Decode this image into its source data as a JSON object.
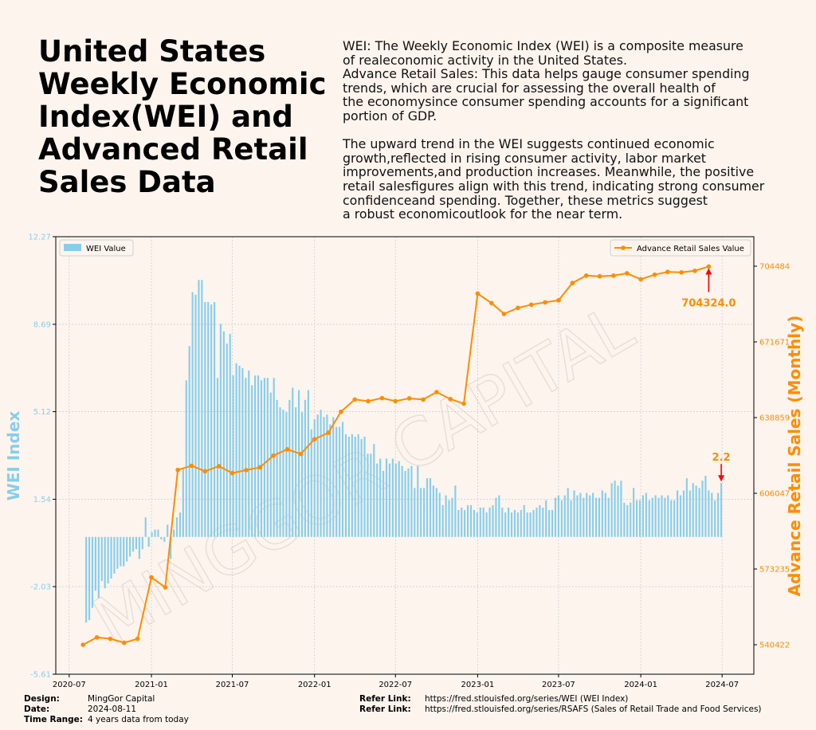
{
  "title": "United States Weekly Economic Index(WEI) and Advanced Retail Sales Data",
  "description": [
    "WEI: The Weekly Economic Index (WEI) is a composite measure\nof realeconomic activity in the United States.\nAdvance Retail Sales: This data helps gauge consumer spending\ntrends, which are crucial for assessing the overall health of\nthe economysince consumer spending accounts for a significant\nportion of GDP.",
    "The upward trend in the WEI suggests continued economic\ngrowth,reflected in rising consumer activity, labor market\nimprovements,and production increases. Meanwhile, the positive\nretail salesfigures align with this trend, indicating strong consumer\nconfidenceand spending. Together, these metrics suggest\na robust economicoutlook for the near term."
  ],
  "footer": {
    "design_label": "Design:",
    "design": "MingGor Capital",
    "date_label": "Date:",
    "date": "2024-08-11",
    "range_label": "Time Range:",
    "range": "4 years data from today",
    "ref1_label": "Refer Link:",
    "ref1": "https://fred.stlouisfed.org/series/WEI (WEI Index)",
    "ref2_label": "Refer Link:",
    "ref2": "https://fred.stlouisfed.org/series/RSAFS (Sales of Retail Trade and Food Services)"
  },
  "colors": {
    "bar": "#87ceeb",
    "line": "#ff8c00",
    "arrow": "#ff0000",
    "background": "#fdf4ee",
    "watermark": "#e6dcd4"
  },
  "chart_data": {
    "type": "bar+line",
    "watermark": "MINGGOR CAPITAL",
    "x_ticks": [
      "2020-07",
      "2021-01",
      "2021-07",
      "2022-01",
      "2022-07",
      "2023-01",
      "2023-07",
      "2024-01",
      "2024-07"
    ],
    "x_range": [
      "2020-06-01",
      "2024-09-10"
    ],
    "left_axis": {
      "label": "WEI Index",
      "ticks": [
        "12.27",
        "8.69",
        "5.12",
        "1.54",
        "-2.03",
        "-5.61"
      ],
      "range": [
        -5.61,
        12.27
      ]
    },
    "right_axis": {
      "label": "Advance Retail Sales (Monthly)",
      "ticks": [
        "704484",
        "671671",
        "638859",
        "606047",
        "573235",
        "540422"
      ]
    },
    "bar_series": {
      "name": "WEI Value",
      "start_date": "2020-08-08",
      "interval_days": 7,
      "baseline": 0,
      "values": [
        -3.5,
        -3.4,
        -2.9,
        -2.2,
        -2.5,
        -1.8,
        -2.1,
        -1.9,
        -1.7,
        -1.5,
        -1.3,
        -1.2,
        -1.2,
        -1.0,
        -0.8,
        -0.6,
        -0.5,
        -0.9,
        -0.5,
        0.8,
        -0.4,
        0.2,
        0.3,
        0.3,
        -0.1,
        -0.2,
        0.5,
        -0.9,
        0.3,
        0.8,
        1.0,
        2.8,
        6.4,
        7.8,
        10.0,
        9.9,
        10.5,
        10.5,
        9.6,
        9.6,
        9.5,
        9.6,
        6.5,
        8.7,
        8.4,
        7.9,
        8.3,
        6.6,
        7.1,
        7.0,
        6.9,
        6.5,
        6.8,
        6.2,
        6.6,
        6.6,
        6.4,
        6.5,
        6.5,
        5.9,
        6.5,
        5.6,
        5.3,
        5.2,
        5.1,
        5.6,
        6.1,
        5.3,
        6.0,
        5.1,
        5.6,
        6.0,
        4.4,
        4.8,
        5.0,
        5.2,
        4.9,
        5.0,
        4.6,
        4.9,
        4.5,
        4.5,
        4.7,
        4.2,
        4.1,
        4.2,
        4.1,
        4.2,
        4.0,
        4.1,
        3.4,
        3.4,
        3.8,
        3.0,
        3.2,
        2.7,
        3.2,
        3.0,
        3.2,
        3.0,
        3.1,
        2.9,
        2.7,
        2.8,
        2.9,
        2.0,
        2.9,
        2.0,
        2.0,
        2.4,
        2.4,
        2.1,
        2.0,
        1.8,
        1.3,
        1.7,
        1.5,
        1.6,
        2.1,
        1.1,
        1.2,
        1.1,
        1.3,
        1.3,
        1.1,
        1.0,
        1.2,
        1.2,
        1.0,
        1.2,
        1.3,
        1.6,
        1.7,
        1.2,
        1.0,
        1.2,
        1.0,
        1.1,
        1.0,
        1.1,
        1.3,
        1.0,
        1.0,
        1.1,
        1.2,
        1.3,
        1.2,
        1.5,
        1.1,
        1.1,
        1.6,
        1.7,
        1.5,
        1.7,
        2.0,
        1.5,
        1.9,
        1.7,
        1.8,
        1.6,
        1.8,
        1.7,
        1.8,
        1.6,
        1.6,
        1.9,
        1.8,
        1.6,
        2.2,
        2.3,
        2.1,
        2.3,
        1.4,
        1.3,
        1.4,
        2.0,
        1.5,
        1.5,
        1.7,
        1.8,
        1.5,
        1.6,
        1.7,
        1.6,
        1.7,
        1.6,
        1.7,
        1.5,
        1.5,
        1.9,
        1.7,
        1.9,
        2.4,
        1.9,
        2.2,
        2.1,
        2.0,
        2.3,
        2.5,
        1.9,
        1.8,
        1.5,
        1.8,
        2.2
      ],
      "last_label": "2.2"
    },
    "line_series": {
      "name": "Advance Retail Sales Value",
      "dates": [
        "2020-08-01",
        "2020-09-01",
        "2020-10-01",
        "2020-11-01",
        "2020-12-01",
        "2021-01-01",
        "2021-02-01",
        "2021-03-01",
        "2021-04-01",
        "2021-05-01",
        "2021-06-01",
        "2021-07-01",
        "2021-08-01",
        "2021-09-01",
        "2021-10-01",
        "2021-11-01",
        "2021-12-01",
        "2022-01-01",
        "2022-02-01",
        "2022-03-01",
        "2022-04-01",
        "2022-05-01",
        "2022-06-01",
        "2022-07-01",
        "2022-08-01",
        "2022-09-01",
        "2022-10-01",
        "2022-11-01",
        "2022-12-01",
        "2023-01-01",
        "2023-02-01",
        "2023-03-01",
        "2023-04-01",
        "2023-05-01",
        "2023-06-01",
        "2023-07-01",
        "2023-08-01",
        "2023-09-01",
        "2023-10-01",
        "2023-11-01",
        "2023-12-01",
        "2024-01-01",
        "2024-02-01",
        "2024-03-01",
        "2024-04-01",
        "2024-05-01",
        "2024-06-01"
      ],
      "values": [
        540422,
        543600,
        543000,
        541300,
        543000,
        569600,
        565300,
        616200,
        618000,
        615600,
        617800,
        614800,
        616100,
        617300,
        622400,
        625100,
        623100,
        629500,
        632300,
        641400,
        646700,
        646000,
        647300,
        646000,
        647200,
        646700,
        649900,
        646900,
        644900,
        692600,
        688500,
        683800,
        686400,
        687800,
        688800,
        689700,
        697200,
        700400,
        700100,
        700400,
        701400,
        698800,
        700800,
        702000,
        701800,
        702500,
        704324
      ],
      "peak_label": "704324.0"
    },
    "legend_left": "top-left",
    "legend_right": "top-right",
    "grid": true
  }
}
